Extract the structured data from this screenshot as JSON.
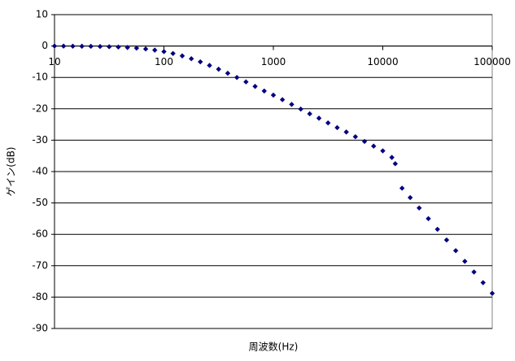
{
  "chart_data": {
    "type": "scatter",
    "x_label": "周波数(Hz)",
    "y_label": "ゲイン(dB)",
    "xscale": "log",
    "xlim": [
      10,
      100000
    ],
    "xticks": [
      10,
      100,
      1000,
      10000,
      100000
    ],
    "ylim": [
      -90,
      10
    ],
    "yticks": [
      10,
      0,
      -10,
      -20,
      -30,
      -40,
      -50,
      -60,
      -70,
      -80,
      -90
    ],
    "grid": true,
    "series": [
      {
        "color": "#000080",
        "x": [
          10,
          12.1,
          14.7,
          17.8,
          21.5,
          26.1,
          31.6,
          38.3,
          46.4,
          56.2,
          68.1,
          82.5,
          100,
          121,
          147,
          178,
          215,
          261,
          316,
          383,
          464,
          562,
          681,
          825,
          1000,
          1210,
          1470,
          1780,
          2150,
          2610,
          3160,
          3830,
          4640,
          5620,
          6810,
          8250,
          10000,
          12100,
          13000,
          15000,
          17800,
          21500,
          26100,
          31600,
          38300,
          46400,
          56200,
          68100,
          82500,
          100000
        ],
        "values": [
          0,
          -0.03,
          -0.05,
          -0.07,
          -0.1,
          -0.15,
          -0.22,
          -0.32,
          -0.46,
          -0.66,
          -0.93,
          -1.3,
          -1.78,
          -2.38,
          -3.15,
          -4.04,
          -5.03,
          -6.18,
          -7.39,
          -8.67,
          -10.02,
          -11.43,
          -12.86,
          -14.33,
          -15.65,
          -17.1,
          -18.6,
          -20.1,
          -21.6,
          -23,
          -24.5,
          -26,
          -27.4,
          -28.9,
          -30.4,
          -31.9,
          -33.4,
          -35.5,
          -37.5,
          -45.3,
          -48.3,
          -51.6,
          -55,
          -58.4,
          -61.8,
          -65.2,
          -68.6,
          -72,
          -75.4,
          -78.8
        ]
      }
    ]
  }
}
